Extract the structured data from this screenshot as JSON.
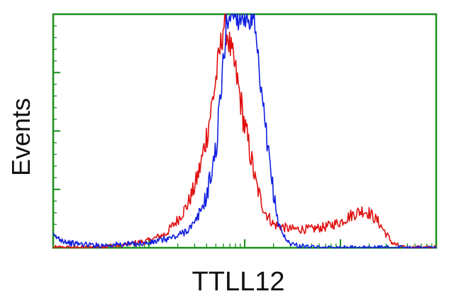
{
  "chart_data": {
    "type": "line",
    "title": "",
    "xlabel": "TTLL12",
    "ylabel": "Events",
    "x_scale": "log",
    "xlim": [
      1,
      10000
    ],
    "ylim": [
      0,
      100
    ],
    "grid": false,
    "legend": "none",
    "frame_color": "#1a8f1a",
    "series": [
      {
        "color": "#e01010",
        "points": [
          [
            1.0,
            0
          ],
          [
            2.0,
            0
          ],
          [
            5.0,
            1
          ],
          [
            10,
            3
          ],
          [
            15,
            6
          ],
          [
            20,
            12
          ],
          [
            25,
            18
          ],
          [
            30,
            26
          ],
          [
            35,
            36
          ],
          [
            40,
            48
          ],
          [
            45,
            60
          ],
          [
            50,
            72
          ],
          [
            55,
            84
          ],
          [
            58,
            90
          ],
          [
            60,
            96
          ],
          [
            65,
            93
          ],
          [
            70,
            86
          ],
          [
            80,
            76
          ],
          [
            90,
            64
          ],
          [
            100,
            52
          ],
          [
            115,
            40
          ],
          [
            130,
            28
          ],
          [
            160,
            16
          ],
          [
            200,
            10
          ],
          [
            300,
            8
          ],
          [
            500,
            8
          ],
          [
            700,
            9
          ],
          [
            1000,
            11
          ],
          [
            1300,
            14
          ],
          [
            1700,
            16
          ],
          [
            2000,
            15
          ],
          [
            2500,
            11
          ],
          [
            3000,
            6
          ],
          [
            3500,
            2
          ],
          [
            4500,
            0
          ],
          [
            10000,
            0
          ]
        ]
      },
      {
        "color": "#1020e0",
        "points": [
          [
            1.0,
            5
          ],
          [
            1.5,
            2
          ],
          [
            3.0,
            1
          ],
          [
            10,
            2
          ],
          [
            20,
            5
          ],
          [
            30,
            10
          ],
          [
            40,
            22
          ],
          [
            50,
            42
          ],
          [
            55,
            60
          ],
          [
            60,
            80
          ],
          [
            65,
            98
          ],
          [
            70,
            100
          ],
          [
            90,
            100
          ],
          [
            110,
            100
          ],
          [
            125,
            96
          ],
          [
            140,
            76
          ],
          [
            160,
            54
          ],
          [
            190,
            30
          ],
          [
            220,
            12
          ],
          [
            270,
            3
          ],
          [
            350,
            1
          ],
          [
            500,
            0
          ],
          [
            2000,
            0
          ],
          [
            10000,
            0
          ]
        ]
      }
    ]
  }
}
